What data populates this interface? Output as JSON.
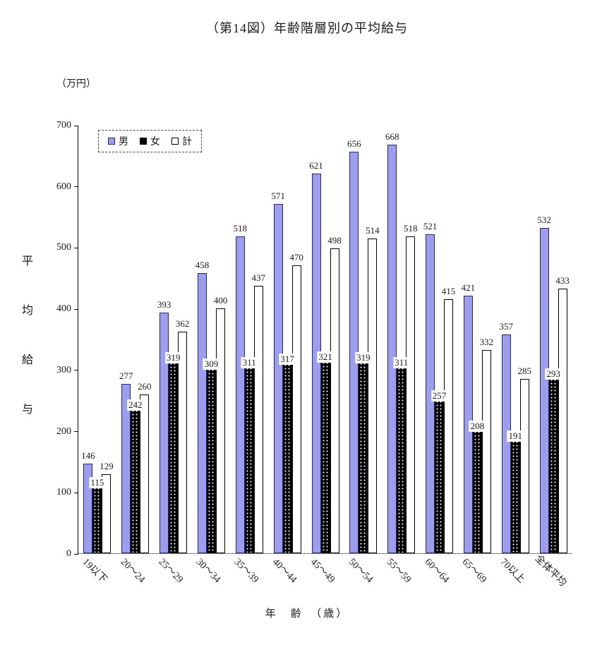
{
  "title": "（第14図）年齢階層別の平均給与",
  "unit_label": "（万円）",
  "y_axis_label_chars": [
    "平",
    "均",
    "給",
    "与"
  ],
  "x_axis_label": "年　齢　（歳）",
  "legend": {
    "male": "男",
    "female": "女",
    "total": "計"
  },
  "colors": {
    "male_fill": "#9d9dee",
    "male_border": "#26266b",
    "female_fill": "#000000",
    "female_dot": "#ffffff",
    "total_fill": "#ffffff",
    "axis": "#000000"
  },
  "chart_data": {
    "type": "bar",
    "title": "（第14図）年齢階層別の平均給与",
    "xlabel": "年齢（歳）",
    "ylabel": "平均給与",
    "unit": "万円",
    "ylim": [
      0,
      700
    ],
    "yticks": [
      0,
      100,
      200,
      300,
      400,
      500,
      600,
      700
    ],
    "grid": false,
    "legend_position": "top-left",
    "categories": [
      "19以下",
      "20～24",
      "25～29",
      "30～34",
      "35～39",
      "40～44",
      "45～49",
      "50～54",
      "55～59",
      "60～64",
      "65～69",
      "70以上",
      "全体平均"
    ],
    "series": [
      {
        "name": "男",
        "values": [
          146,
          277,
          393,
          458,
          518,
          571,
          621,
          656,
          668,
          521,
          421,
          357,
          532
        ]
      },
      {
        "name": "女",
        "values": [
          115,
          242,
          319,
          309,
          311,
          317,
          321,
          319,
          311,
          257,
          208,
          191,
          293
        ]
      },
      {
        "name": "計",
        "values": [
          129,
          260,
          362,
          400,
          437,
          470,
          498,
          514,
          518,
          415,
          332,
          285,
          433
        ]
      }
    ]
  }
}
